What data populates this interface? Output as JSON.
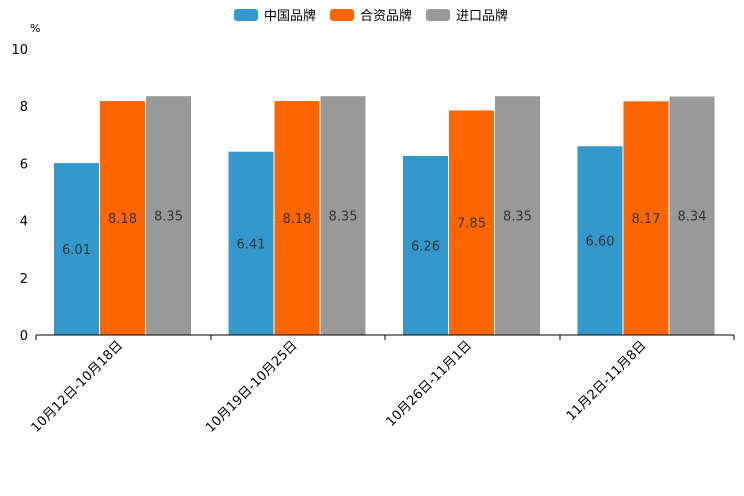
{
  "chart_data": {
    "type": "bar",
    "unit_label": "%",
    "ylim": [
      0,
      10
    ],
    "yticks": [
      "0",
      "2",
      "4",
      "6",
      "8",
      "10"
    ],
    "categories": [
      "10月12日-10月18日",
      "10月19日-10月25日",
      "10月26日-11月1日",
      "11月2日-11月8日"
    ],
    "series": [
      {
        "name": "中国品牌",
        "color": "#3399cc",
        "values": [
          6.01,
          6.41,
          6.26,
          6.6
        ],
        "labels": [
          "6.01",
          "6.41",
          "6.26",
          "6.60"
        ]
      },
      {
        "name": "合资品牌",
        "color": "#ff6600",
        "values": [
          8.18,
          8.18,
          7.85,
          8.17
        ],
        "labels": [
          "8.18",
          "8.18",
          "7.85",
          "8.17"
        ]
      },
      {
        "name": "进口品牌",
        "color": "#999999",
        "values": [
          8.35,
          8.35,
          8.35,
          8.34
        ],
        "labels": [
          "8.35",
          "8.35",
          "8.35",
          "8.34"
        ]
      }
    ],
    "legend_position": "top-center",
    "grid": false
  }
}
